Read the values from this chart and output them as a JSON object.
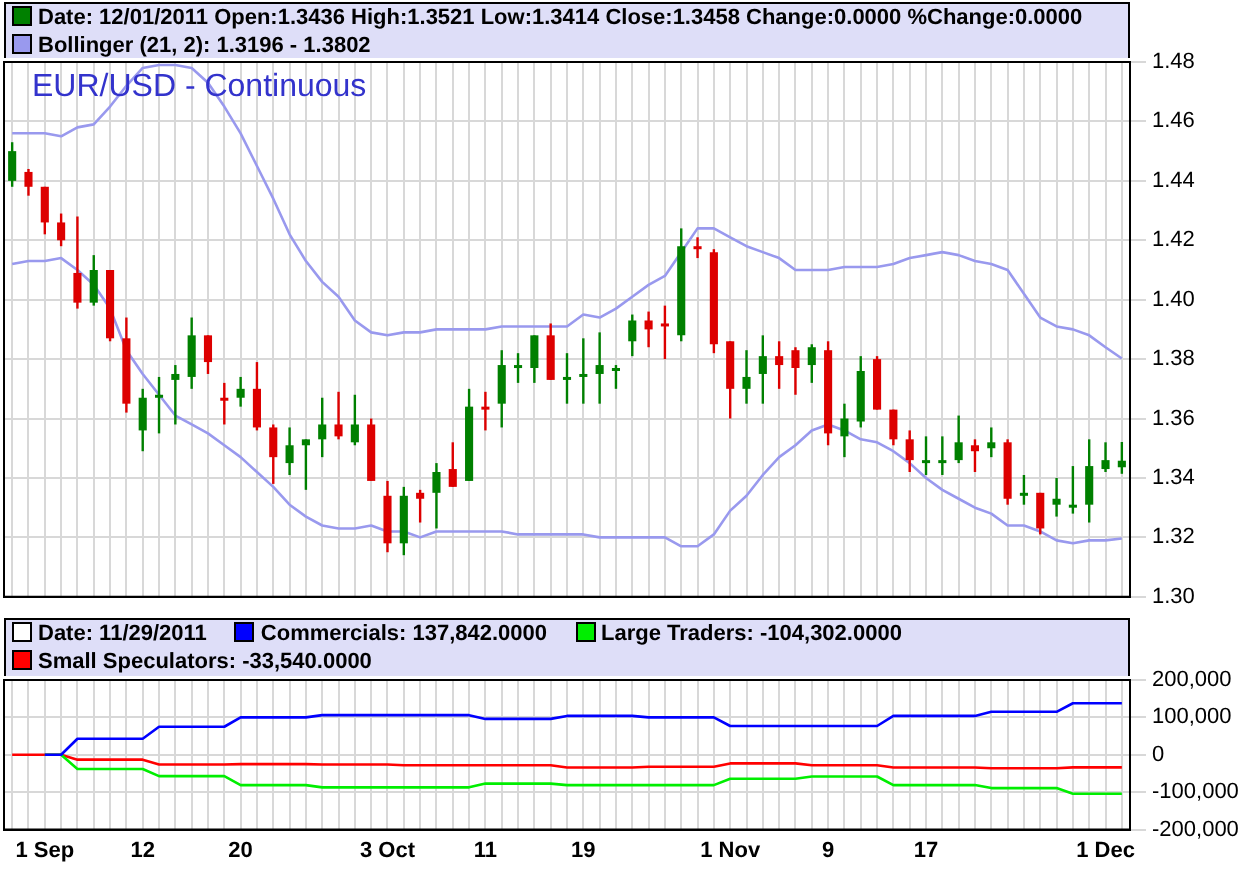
{
  "chart_data": [
    {
      "type": "candlestick",
      "title": "EUR/USD - Continuous",
      "legend_title": "Date: 12/01/2011  Open:1.3436  High:1.3521  Low:1.3414  Close:1.3458  Change:0.0000  %Change:0.0000",
      "categories": [
        null,
        null,
        null,
        null,
        null,
        null,
        null,
        null,
        null,
        null,
        null,
        null,
        null,
        null,
        null,
        null,
        null,
        null,
        null,
        null,
        null,
        null,
        null,
        null,
        null,
        null,
        null,
        null,
        null,
        null,
        null,
        null,
        null,
        null,
        null,
        null,
        null,
        null,
        null,
        null,
        null,
        null,
        null,
        null,
        null,
        null,
        null,
        null,
        null,
        null,
        null,
        null,
        null,
        null,
        null,
        null,
        null,
        null,
        null,
        null,
        null,
        null,
        null,
        null,
        null,
        null,
        null,
        null,
        null
      ],
      "ohlc": [
        [
          1.44,
          1.453,
          1.438,
          1.45
        ],
        [
          1.443,
          1.444,
          1.435,
          1.438
        ],
        [
          1.438,
          1.438,
          1.422,
          1.426
        ],
        [
          1.426,
          1.429,
          1.418,
          1.42
        ],
        [
          1.409,
          1.428,
          1.397,
          1.399
        ],
        [
          1.399,
          1.415,
          1.398,
          1.41
        ],
        [
          1.41,
          1.41,
          1.386,
          1.387
        ],
        [
          1.387,
          1.394,
          1.362,
          1.365
        ],
        [
          1.356,
          1.37,
          1.349,
          1.367
        ],
        [
          1.367,
          1.374,
          1.355,
          1.368
        ],
        [
          1.373,
          1.378,
          1.358,
          1.375
        ],
        [
          1.374,
          1.394,
          1.37,
          1.388
        ],
        [
          1.388,
          1.388,
          1.375,
          1.379
        ],
        [
          1.367,
          1.372,
          1.358,
          1.366
        ],
        [
          1.367,
          1.374,
          1.364,
          1.37
        ],
        [
          1.37,
          1.379,
          1.356,
          1.357
        ],
        [
          1.357,
          1.358,
          1.338,
          1.347
        ],
        [
          1.345,
          1.357,
          1.341,
          1.351
        ],
        [
          1.351,
          1.353,
          1.336,
          1.353
        ],
        [
          1.353,
          1.367,
          1.347,
          1.358
        ],
        [
          1.358,
          1.369,
          1.353,
          1.354
        ],
        [
          1.352,
          1.368,
          1.351,
          1.358
        ],
        [
          1.358,
          1.36,
          1.339,
          1.339
        ],
        [
          1.334,
          1.339,
          1.315,
          1.318
        ],
        [
          1.318,
          1.337,
          1.314,
          1.334
        ],
        [
          1.335,
          1.336,
          1.325,
          1.333
        ],
        [
          1.335,
          1.345,
          1.323,
          1.342
        ],
        [
          1.343,
          1.352,
          1.337,
          1.337
        ],
        [
          1.339,
          1.37,
          1.339,
          1.364
        ],
        [
          1.364,
          1.369,
          1.356,
          1.363
        ],
        [
          1.365,
          1.383,
          1.357,
          1.378
        ],
        [
          1.377,
          1.382,
          1.372,
          1.378
        ],
        [
          1.377,
          1.388,
          1.372,
          1.388
        ],
        [
          1.388,
          1.392,
          1.373,
          1.373
        ],
        [
          1.373,
          1.382,
          1.365,
          1.374
        ],
        [
          1.374,
          1.387,
          1.365,
          1.375
        ],
        [
          1.375,
          1.389,
          1.365,
          1.378
        ],
        [
          1.376,
          1.378,
          1.37,
          1.377
        ],
        [
          1.386,
          1.395,
          1.381,
          1.393
        ],
        [
          1.393,
          1.396,
          1.384,
          1.39
        ],
        [
          1.392,
          1.398,
          1.38,
          1.391
        ],
        [
          1.388,
          1.424,
          1.386,
          1.418
        ],
        [
          1.418,
          1.421,
          1.414,
          1.417
        ],
        [
          1.416,
          1.417,
          1.382,
          1.385
        ],
        [
          1.386,
          1.386,
          1.36,
          1.37
        ],
        [
          1.37,
          1.383,
          1.365,
          1.374
        ],
        [
          1.375,
          1.388,
          1.365,
          1.381
        ],
        [
          1.381,
          1.386,
          1.37,
          1.378
        ],
        [
          1.383,
          1.384,
          1.368,
          1.377
        ],
        [
          1.378,
          1.385,
          1.372,
          1.384
        ],
        [
          1.383,
          1.386,
          1.351,
          1.355
        ],
        [
          1.354,
          1.365,
          1.347,
          1.36
        ],
        [
          1.359,
          1.381,
          1.357,
          1.376
        ],
        [
          1.38,
          1.381,
          1.363,
          1.363
        ],
        [
          1.363,
          1.363,
          1.351,
          1.353
        ],
        [
          1.353,
          1.356,
          1.342,
          1.346
        ],
        [
          1.345,
          1.354,
          1.341,
          1.346
        ],
        [
          1.345,
          1.354,
          1.341,
          1.346
        ],
        [
          1.346,
          1.361,
          1.345,
          1.352
        ],
        [
          1.351,
          1.353,
          1.342,
          1.349
        ],
        [
          1.35,
          1.357,
          1.347,
          1.352
        ],
        [
          1.352,
          1.353,
          1.331,
          1.333
        ],
        [
          1.334,
          1.341,
          1.331,
          1.335
        ],
        [
          1.335,
          1.335,
          1.321,
          1.323
        ],
        [
          1.331,
          1.34,
          1.327,
          1.333
        ],
        [
          1.33,
          1.344,
          1.328,
          1.331
        ],
        [
          1.331,
          1.353,
          1.325,
          1.344
        ],
        [
          1.343,
          1.352,
          1.342,
          1.346
        ],
        [
          1.3436,
          1.3521,
          1.3414,
          1.3458
        ]
      ],
      "colors": [
        "#008000",
        "#dd0000",
        "#dd0000",
        "#dd0000",
        "#dd0000",
        "#008000",
        "#dd0000",
        "#dd0000",
        "#008000",
        "#008000",
        "#008000",
        "#008000",
        "#dd0000",
        "#dd0000",
        "#008000",
        "#dd0000",
        "#dd0000",
        "#008000",
        "#008000",
        "#008000",
        "#dd0000",
        "#008000",
        "#dd0000",
        "#dd0000",
        "#008000",
        "#dd0000",
        "#008000",
        "#dd0000",
        "#008000",
        "#dd0000",
        "#008000",
        "#008000",
        "#008000",
        "#dd0000",
        "#008000",
        "#008000",
        "#008000",
        "#008000",
        "#008000",
        "#dd0000",
        "#dd0000",
        "#008000",
        "#dd0000",
        "#dd0000",
        "#dd0000",
        "#008000",
        "#008000",
        "#dd0000",
        "#dd0000",
        "#008000",
        "#dd0000",
        "#008000",
        "#008000",
        "#dd0000",
        "#dd0000",
        "#dd0000",
        "#008000",
        "#008000",
        "#008000",
        "#dd0000",
        "#008000",
        "#dd0000",
        "#008000",
        "#dd0000",
        "#008000",
        "#008000",
        "#008000",
        "#008000",
        "#008000"
      ],
      "series": [
        {
          "type": "line",
          "name": "Bollinger (21, 2): 1.3196 - 1.3802",
          "color": "#9999ee",
          "values": [
            1.456,
            1.456,
            1.456,
            1.455,
            1.458,
            1.459,
            1.465,
            1.472,
            1.478,
            1.479,
            1.479,
            1.478,
            1.473,
            1.465,
            1.456,
            1.445,
            1.434,
            1.422,
            1.413,
            1.406,
            1.401,
            1.393,
            1.389,
            1.388,
            1.389,
            1.389,
            1.39,
            1.39,
            1.39,
            1.39,
            1.391,
            1.391,
            1.391,
            1.391,
            1.391,
            1.395,
            1.394,
            1.397,
            1.401,
            1.405,
            1.408,
            1.416,
            1.424,
            1.424,
            1.421,
            1.418,
            1.416,
            1.414,
            1.41,
            1.41,
            1.41,
            1.411,
            1.411,
            1.411,
            1.412,
            1.414,
            1.415,
            1.416,
            1.415,
            1.413,
            1.412,
            1.41,
            1.402,
            1.394,
            1.391,
            1.39,
            1.388,
            1.384,
            1.3802
          ]
        },
        {
          "type": "line",
          "color": "#9999ee",
          "values": [
            1.412,
            1.413,
            1.413,
            1.414,
            1.41,
            1.405,
            1.397,
            1.383,
            1.375,
            1.368,
            1.361,
            1.358,
            1.355,
            1.351,
            1.347,
            1.342,
            1.337,
            1.331,
            1.327,
            1.324,
            1.323,
            1.323,
            1.324,
            1.322,
            1.322,
            1.32,
            1.322,
            1.322,
            1.322,
            1.322,
            1.322,
            1.321,
            1.321,
            1.321,
            1.321,
            1.321,
            1.32,
            1.32,
            1.32,
            1.32,
            1.32,
            1.317,
            1.317,
            1.321,
            1.329,
            1.334,
            1.341,
            1.347,
            1.351,
            1.356,
            1.358,
            1.356,
            1.353,
            1.352,
            1.349,
            1.345,
            1.34,
            1.336,
            1.333,
            1.33,
            1.328,
            1.324,
            1.324,
            1.322,
            1.319,
            1.318,
            1.319,
            1.319,
            1.3196
          ]
        }
      ],
      "ylim": [
        1.3,
        1.48
      ],
      "yticks": [
        {
          "value": 1.3,
          "label": "1.30"
        },
        1.32,
        1.34,
        1.36,
        1.38,
        {
          "value": 1.4,
          "label": "1.40"
        },
        1.42,
        1.44,
        1.46,
        1.48
      ],
      "grid": true,
      "legend": "top left",
      "tick_labels": "y",
      "marker": "none"
    },
    {
      "type": "line",
      "legend_title": "Date: 11/29/2011",
      "categories": [
        null,
        null,
        "1 Sep",
        null,
        null,
        null,
        null,
        null,
        "12",
        null,
        null,
        null,
        null,
        null,
        "20",
        null,
        null,
        null,
        null,
        null,
        null,
        null,
        null,
        "3 Oct",
        null,
        null,
        null,
        null,
        null,
        "11",
        null,
        null,
        null,
        null,
        null,
        "19",
        null,
        null,
        null,
        null,
        null,
        null,
        null,
        null,
        "1 Nov",
        null,
        null,
        null,
        null,
        null,
        "9",
        null,
        null,
        null,
        null,
        null,
        "17",
        null,
        null,
        null,
        null,
        null,
        null,
        null,
        null,
        null,
        null,
        "1 Dec",
        null
      ],
      "series": [
        {
          "name": "Commercials: 137,842.0000",
          "color": "#0000ff",
          "values": [
            null,
            null,
            0,
            0,
            43000,
            43000,
            43000,
            43000,
            43000,
            75000,
            75000,
            75000,
            75000,
            75000,
            100000,
            100000,
            100000,
            100000,
            100000,
            106000,
            106000,
            106000,
            106000,
            106000,
            106000,
            106000,
            106000,
            106000,
            106000,
            96000,
            96000,
            96000,
            96000,
            96000,
            104000,
            104000,
            104000,
            104000,
            104000,
            100000,
            100000,
            100000,
            100000,
            100000,
            77000,
            77000,
            77000,
            77000,
            77000,
            77000,
            77000,
            77000,
            77000,
            77000,
            104000,
            104000,
            104000,
            104000,
            104000,
            104000,
            115000,
            115000,
            115000,
            115000,
            115000,
            137842,
            137842,
            137842,
            137842
          ]
        },
        {
          "name": "Large Traders: -104,302.0000",
          "color": "#00ee00",
          "values": [
            null,
            null,
            0,
            0,
            -38000,
            -38000,
            -38000,
            -38000,
            -38000,
            -57000,
            -57000,
            -57000,
            -57000,
            -57000,
            -81000,
            -81000,
            -81000,
            -81000,
            -81000,
            -87000,
            -87000,
            -87000,
            -87000,
            -87000,
            -87000,
            -87000,
            -87000,
            -87000,
            -87000,
            -77000,
            -77000,
            -77000,
            -77000,
            -77000,
            -81000,
            -81000,
            -81000,
            -81000,
            -81000,
            -81000,
            -81000,
            -81000,
            -81000,
            -81000,
            -64000,
            -64000,
            -64000,
            -64000,
            -64000,
            -58000,
            -58000,
            -58000,
            -58000,
            -58000,
            -81000,
            -81000,
            -81000,
            -81000,
            -81000,
            -81000,
            -89000,
            -89000,
            -89000,
            -89000,
            -89000,
            -104302,
            -104302,
            -104302,
            -104302
          ]
        },
        {
          "name": "Small Speculators: -33,540.0000",
          "color": "#ff0000",
          "values": [
            0,
            0,
            0,
            0,
            -13000,
            -13000,
            -13000,
            -13000,
            -13000,
            -26000,
            -26000,
            -26000,
            -26000,
            -26000,
            -25000,
            -25000,
            -25000,
            -25000,
            -25000,
            -26000,
            -26000,
            -26000,
            -26000,
            -26000,
            -28000,
            -28000,
            -28000,
            -28000,
            -28000,
            -28000,
            -28000,
            -28000,
            -28000,
            -28000,
            -34000,
            -34000,
            -34000,
            -34000,
            -34000,
            -32000,
            -32000,
            -32000,
            -32000,
            -32000,
            -23000,
            -23000,
            -23000,
            -23000,
            -23000,
            -28000,
            -28000,
            -28000,
            -28000,
            -28000,
            -34000,
            -34000,
            -34000,
            -34000,
            -34000,
            -34000,
            -36000,
            -36000,
            -36000,
            -36000,
            -36000,
            -33540,
            -33540,
            -33540,
            -33540
          ]
        }
      ],
      "ylim": [
        -200000,
        200000
      ],
      "yticks": [
        {
          "value": -200000,
          "label": "-200,000"
        },
        {
          "value": -100000,
          "label": "-100,000"
        },
        0,
        {
          "value": 100000,
          "label": "100,000"
        },
        {
          "value": 200000,
          "label": "200,000"
        }
      ],
      "grid": true,
      "legend": "top left",
      "marker": "none"
    }
  ]
}
